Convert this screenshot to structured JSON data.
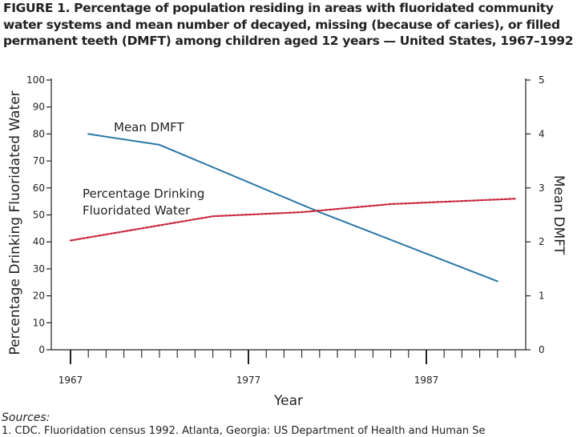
{
  "figure": {
    "title": "FIGURE 1. Percentage of population residing in areas with fluoridated community water systems and mean number of decayed, missing (because of caries), or filled permanent teeth (DMFT) among children aged 12 years — United States, 1967–1992",
    "sources_label": "Sources:",
    "source_line": "1. CDC. Fluoridation census 1992. Atlanta, Georgia: US Department of Health and Human Se"
  },
  "chart_data": {
    "type": "line",
    "title": "Percentage of population residing in areas with fluoridated community water systems and mean number of decayed, missing (because of caries), or filled permanent teeth (DMFT) among children aged 12 years — United States, 1967–1992",
    "xlabel": "Year",
    "ylabel_left": "Percentage Drinking Fluoridated Water",
    "ylabel_right": "Mean DMFT",
    "xlim": [
      1967,
      1992
    ],
    "ylim_left": [
      0,
      100
    ],
    "ylim_right": [
      0,
      5
    ],
    "x_ticks": [
      1967,
      1977,
      1987
    ],
    "x_minor_ticks": [
      1967,
      1968,
      1969,
      1970,
      1971,
      1972,
      1973,
      1974,
      1975,
      1976,
      1977,
      1978,
      1979,
      1980,
      1981,
      1982,
      1983,
      1984,
      1985,
      1986,
      1987,
      1988,
      1989,
      1990,
      1991,
      1992
    ],
    "y_left_ticks": [
      0,
      10,
      20,
      30,
      40,
      50,
      60,
      70,
      80,
      90,
      100
    ],
    "y_right_ticks": [
      0,
      1,
      2,
      3,
      4,
      5
    ],
    "series": [
      {
        "name": "Mean DMFT",
        "axis": "right",
        "color": "#2a78a8",
        "style": "solid",
        "x": [
          1968,
          1972,
          1981,
          1991
        ],
        "values": [
          4.0,
          3.8,
          2.55,
          1.27
        ]
      },
      {
        "name": "Percentage Drinking Fluoridated Water",
        "axis": "left",
        "color": "#c8283c",
        "style": "dotted",
        "x": [
          1967,
          1975,
          1980,
          1985,
          1992
        ],
        "values": [
          40.5,
          49.5,
          51,
          54,
          56
        ]
      }
    ],
    "annotations": [
      {
        "series": "Mean DMFT",
        "lines": [
          "Mean DMFT"
        ]
      },
      {
        "series": "Percentage Drinking Fluoridated Water",
        "lines": [
          "Percentage Drinking",
          "Fluoridated Water"
        ]
      }
    ]
  }
}
